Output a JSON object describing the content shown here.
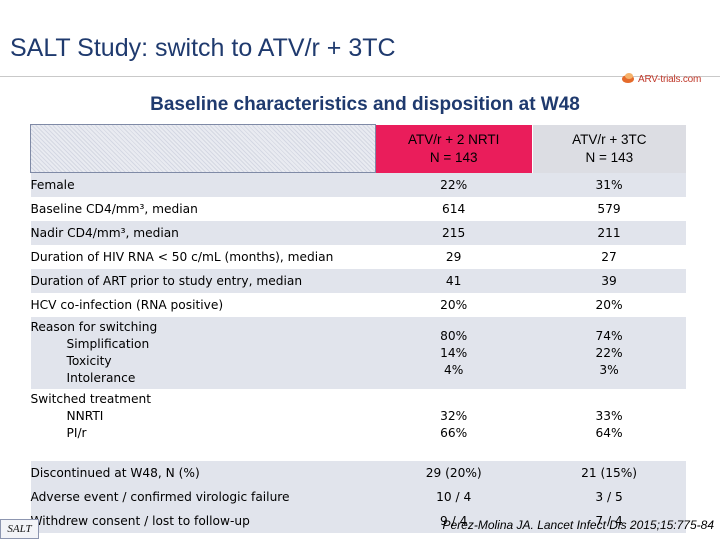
{
  "slide": {
    "title": "SALT Study: switch to ATV/r + 3TC",
    "subtitle": "Baseline characteristics and disposition at W48",
    "logo_text": "ARV-trials.com",
    "footer_tag": "SALT",
    "reference": "Perez-Molina JA. Lancet Infect Dis 2015;15:775-84"
  },
  "colors": {
    "title": "#1f3a6e",
    "header_arm1": "#ea1d5b",
    "header_arm2": "#dcdde3",
    "alt_row": "#e1e4ec"
  },
  "table": {
    "arm1": {
      "name": "ATV/r + 2 NRTI",
      "n": "N = 143"
    },
    "arm2": {
      "name": "ATV/r + 3TC",
      "n": "N = 143"
    },
    "rows": [
      {
        "label": "Female",
        "arm1": "22%",
        "arm2": "31%"
      },
      {
        "label": "Baseline CD4/mm³, median",
        "arm1": "614",
        "arm2": "579"
      },
      {
        "label": "Nadir CD4/mm³, median",
        "arm1": "215",
        "arm2": "211"
      },
      {
        "label": "Duration of HIV RNA < 50 c/mL (months), median",
        "arm1": "29",
        "arm2": "27"
      },
      {
        "label": "Duration of ART prior to study entry, median",
        "arm1": "41",
        "arm2": "39"
      },
      {
        "label": "HCV co-infection (RNA positive)",
        "arm1": "20%",
        "arm2": "20%"
      }
    ],
    "reason": {
      "label": "Reason for switching",
      "items": [
        {
          "label": "Simplification",
          "arm1": "80%",
          "arm2": "74%"
        },
        {
          "label": "Toxicity",
          "arm1": "14%",
          "arm2": "22%"
        },
        {
          "label": "Intolerance",
          "arm1": "4%",
          "arm2": "3%"
        }
      ]
    },
    "switched": {
      "label": "Switched treatment",
      "items": [
        {
          "label": "NNRTI",
          "arm1": "32%",
          "arm2": "33%"
        },
        {
          "label": "PI/r",
          "arm1": "66%",
          "arm2": "64%"
        }
      ]
    },
    "discontinued": {
      "label": "Discontinued at W48, N (%)",
      "arm1": "29 (20%)",
      "arm2": "21 (15%)",
      "items": [
        {
          "label": "Adverse event / confirmed virologic failure",
          "arm1": "10 / 4",
          "arm2": "3 / 5"
        },
        {
          "label": "Withdrew consent / lost to follow-up",
          "arm1": "9 / 4",
          "arm2": "7 / 4"
        }
      ]
    }
  }
}
